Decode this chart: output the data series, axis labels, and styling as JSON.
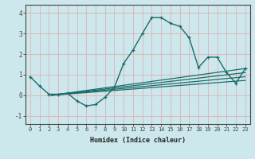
{
  "xlabel": "Humidex (Indice chaleur)",
  "xlim": [
    -0.5,
    23.5
  ],
  "ylim": [
    -1.4,
    4.4
  ],
  "yticks": [
    -1,
    0,
    1,
    2,
    3,
    4
  ],
  "xticks": [
    0,
    1,
    2,
    3,
    4,
    5,
    6,
    7,
    8,
    9,
    10,
    11,
    12,
    13,
    14,
    15,
    16,
    17,
    18,
    19,
    20,
    21,
    22,
    23
  ],
  "bg_color": "#cce8ec",
  "grid_color": "#ddb8b8",
  "line_color": "#1a6b6b",
  "main_series_x": [
    0,
    1,
    2,
    3,
    4,
    5,
    6,
    7,
    8,
    9,
    10,
    11,
    12,
    13,
    14,
    15,
    16,
    17,
    18,
    19,
    20,
    21,
    22,
    23
  ],
  "main_series_y": [
    0.9,
    0.45,
    0.05,
    0.05,
    0.1,
    -0.28,
    -0.52,
    -0.45,
    -0.1,
    0.38,
    1.55,
    2.2,
    3.0,
    3.78,
    3.78,
    3.5,
    3.35,
    2.8,
    1.35,
    1.85,
    1.85,
    1.1,
    0.58,
    1.3
  ],
  "trend_lines": [
    {
      "x0": 2.3,
      "y0": 0.0,
      "x1": 23,
      "y1": 1.3
    },
    {
      "x0": 2.3,
      "y0": 0.0,
      "x1": 23,
      "y1": 1.1
    },
    {
      "x0": 2.3,
      "y0": 0.0,
      "x1": 23,
      "y1": 0.9
    },
    {
      "x0": 2.3,
      "y0": 0.0,
      "x1": 23,
      "y1": 0.72
    }
  ]
}
